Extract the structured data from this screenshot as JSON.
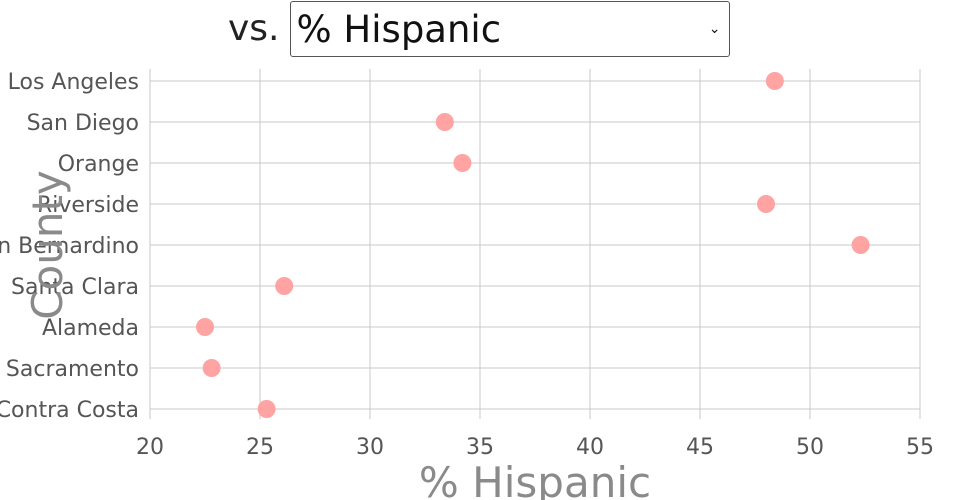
{
  "header": {
    "vs_label": "vs.",
    "dropdown_value": "% Hispanic"
  },
  "icons": {
    "dropdown": "chevron-down-icon"
  },
  "chart_data": {
    "type": "scatter",
    "title": "",
    "xlabel": "% Hispanic",
    "ylabel": "County",
    "xlim": [
      20,
      55
    ],
    "xticks": [
      "20",
      "25",
      "30",
      "35",
      "40",
      "45",
      "50",
      "55"
    ],
    "grid": true,
    "point_color": "#ff9e9e",
    "categories": [
      "Los Angeles",
      "San Diego",
      "Orange",
      "Riverside",
      "San Bernardino",
      "Santa Clara",
      "Alameda",
      "Sacramento",
      "Contra Costa"
    ],
    "values": [
      48.4,
      33.4,
      34.2,
      48.0,
      52.3,
      26.1,
      22.5,
      22.8,
      25.3
    ]
  }
}
